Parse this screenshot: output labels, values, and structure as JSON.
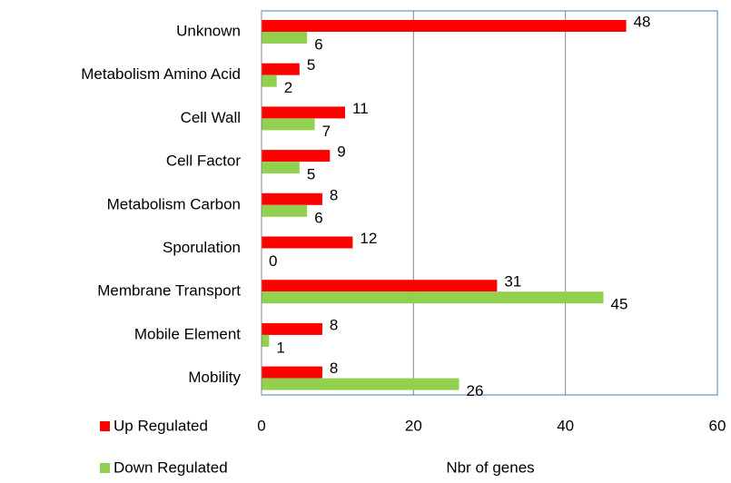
{
  "chart_data": {
    "type": "barh",
    "categories": [
      "Unknown",
      "Metabolism Amino Acid",
      "Cell Wall",
      "Cell Factor",
      "Metabolism Carbon",
      "Sporulation",
      "Membrane Transport",
      "Mobile Element",
      "Mobility"
    ],
    "series": [
      {
        "name": "Up Regulated",
        "color": "#ff0000",
        "values": [
          48,
          5,
          11,
          9,
          8,
          12,
          31,
          8,
          8
        ]
      },
      {
        "name": "Down Regulated",
        "color": "#92d050",
        "values": [
          6,
          2,
          7,
          5,
          6,
          0,
          45,
          1,
          26
        ]
      }
    ],
    "xlabel": "Nbr of genes",
    "xlim": [
      0,
      60
    ],
    "xticks": [
      0,
      20,
      40,
      60
    ],
    "grid": true,
    "legend": "bottom-left"
  }
}
